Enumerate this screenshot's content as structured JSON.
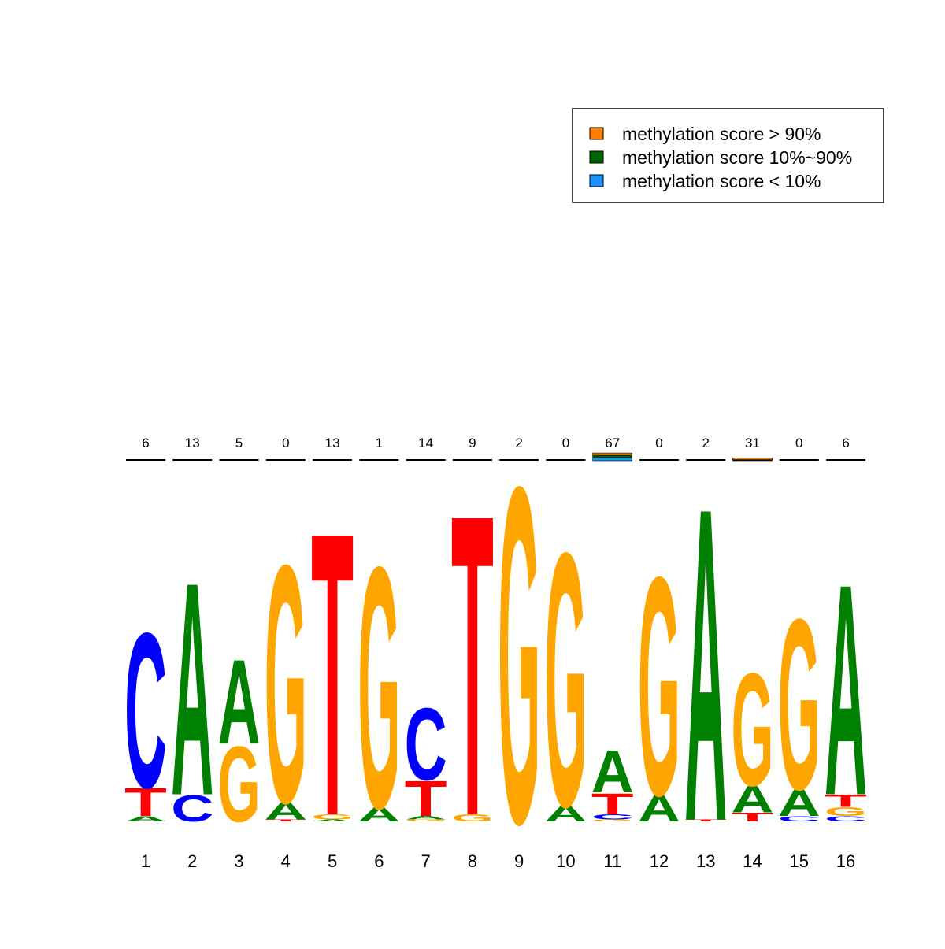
{
  "chart_data": {
    "type": "logo",
    "letter_colors": {
      "A": "#008000",
      "C": "#0000ff",
      "G": "#ffa500",
      "T": "#ff0000"
    },
    "ylim": [
      0,
      2
    ],
    "positions": [
      {
        "label": "1",
        "count": 6,
        "letters": [
          {
            "letter": "A",
            "value": 0.03
          },
          {
            "letter": "T",
            "value": 0.16
          },
          {
            "letter": "C",
            "value": 0.88
          }
        ]
      },
      {
        "label": "2",
        "count": 13,
        "letters": [
          {
            "letter": "C",
            "value": 0.15
          },
          {
            "letter": "A",
            "value": 1.21
          }
        ]
      },
      {
        "label": "3",
        "count": 5,
        "letters": [
          {
            "letter": "G",
            "value": 0.43
          },
          {
            "letter": "A",
            "value": 0.48
          }
        ]
      },
      {
        "label": "4",
        "count": 0,
        "letters": [
          {
            "letter": "T",
            "value": 0.01
          },
          {
            "letter": "A",
            "value": 0.1
          },
          {
            "letter": "G",
            "value": 1.35
          }
        ]
      },
      {
        "label": "5",
        "count": 13,
        "letters": [
          {
            "letter": "A",
            "value": 0.01
          },
          {
            "letter": "G",
            "value": 0.03
          },
          {
            "letter": "T",
            "value": 1.61
          }
        ]
      },
      {
        "label": "6",
        "count": 1,
        "letters": [
          {
            "letter": "A",
            "value": 0.08
          },
          {
            "letter": "G",
            "value": 1.37
          }
        ]
      },
      {
        "label": "7",
        "count": 14,
        "letters": [
          {
            "letter": "G",
            "value": 0.01
          },
          {
            "letter": "A",
            "value": 0.02
          },
          {
            "letter": "T",
            "value": 0.2
          },
          {
            "letter": "C",
            "value": 0.41
          }
        ]
      },
      {
        "label": "8",
        "count": 9,
        "letters": [
          {
            "letter": "G",
            "value": 0.04
          },
          {
            "letter": "T",
            "value": 1.71
          }
        ]
      },
      {
        "label": "9",
        "count": 2,
        "letters": [
          {
            "letter": "G",
            "value": 1.91
          }
        ]
      },
      {
        "label": "10",
        "count": 0,
        "letters": [
          {
            "letter": "A",
            "value": 0.09
          },
          {
            "letter": "G",
            "value": 1.44
          }
        ]
      },
      {
        "label": "11",
        "count": 67,
        "letters": [
          {
            "letter": "G",
            "value": 0.01
          },
          {
            "letter": "C",
            "value": 0.03
          },
          {
            "letter": "T",
            "value": 0.12
          },
          {
            "letter": "A",
            "value": 0.24
          }
        ]
      },
      {
        "label": "12",
        "count": 0,
        "letters": [
          {
            "letter": "A",
            "value": 0.15
          },
          {
            "letter": "G",
            "value": 1.24
          }
        ]
      },
      {
        "label": "13",
        "count": 2,
        "letters": [
          {
            "letter": "T",
            "value": 0.01
          },
          {
            "letter": "A",
            "value": 1.78
          }
        ]
      },
      {
        "label": "14",
        "count": 31,
        "letters": [
          {
            "letter": "T",
            "value": 0.05
          },
          {
            "letter": "A",
            "value": 0.15
          },
          {
            "letter": "G",
            "value": 0.64
          }
        ]
      },
      {
        "label": "15",
        "count": 0,
        "letters": [
          {
            "letter": "C",
            "value": 0.03
          },
          {
            "letter": "A",
            "value": 0.15
          },
          {
            "letter": "G",
            "value": 0.97
          }
        ]
      },
      {
        "label": "16",
        "count": 6,
        "letters": [
          {
            "letter": "C",
            "value": 0.03
          },
          {
            "letter": "G",
            "value": 0.05
          },
          {
            "letter": "T",
            "value": 0.07
          },
          {
            "letter": "A",
            "value": 1.2
          }
        ]
      }
    ],
    "methylation": [
      {
        "name": "methylation score < 10%",
        "color": "#1e90ff",
        "values": [
          0,
          0,
          0,
          0,
          0,
          0,
          0,
          0,
          0,
          0,
          0.017,
          0,
          0,
          0.003,
          0,
          0
        ]
      },
      {
        "name": "methylation score 10%~90%",
        "color": "#006400",
        "values": [
          0,
          0,
          0,
          0,
          0,
          0,
          0,
          0,
          0,
          0,
          0.013,
          0,
          0,
          0.003,
          0,
          0
        ]
      },
      {
        "name": "methylation score > 90%",
        "color": "#ff7f00",
        "values": [
          0,
          0,
          0,
          0,
          0,
          0,
          0,
          0,
          0,
          0,
          0.013,
          0,
          0,
          0.01,
          0,
          0
        ]
      }
    ],
    "legend_order": [
      2,
      1,
      0
    ]
  }
}
